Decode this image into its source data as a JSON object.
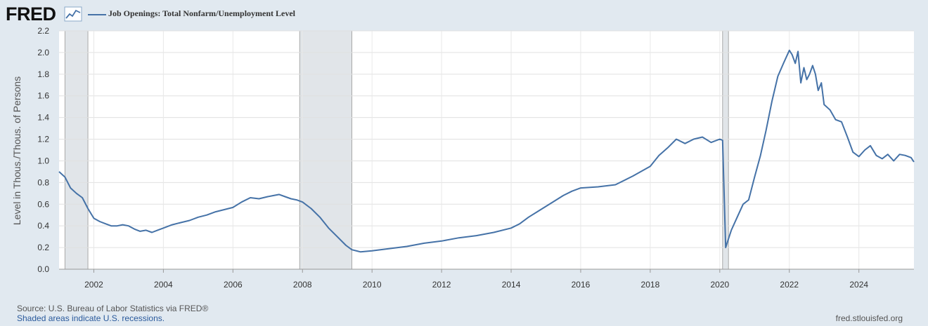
{
  "header": {
    "logo_text": "FRED",
    "legend_label": "Job Openings: Total Nonfarm/Unemployment Level",
    "series_color": "#4572a7",
    "icon": "line-graph-icon"
  },
  "footer": {
    "source": "Source: U.S. Bureau of Labor Statistics via FRED®",
    "notes": "Shaded areas indicate U.S. recessions.",
    "site": "fred.stlouisfed.org"
  },
  "chart_data": {
    "type": "line",
    "title": "",
    "xlabel": "",
    "ylabel": "Level in Thous./Thous. of Persons",
    "xlim": [
      2001.0,
      2025.583
    ],
    "ylim": [
      0.0,
      2.2
    ],
    "grid": true,
    "legend": "top-left",
    "x_ticks": [
      "2002",
      "2004",
      "2006",
      "2008",
      "2010",
      "2012",
      "2014",
      "2016",
      "2018",
      "2020",
      "2022",
      "2024"
    ],
    "y_ticks": [
      "0.0",
      "0.2",
      "0.4",
      "0.6",
      "0.8",
      "1.0",
      "1.2",
      "1.4",
      "1.6",
      "1.8",
      "2.0",
      "2.2"
    ],
    "recessions": [
      [
        2001.17,
        2001.83
      ],
      [
        2007.92,
        2009.42
      ],
      [
        2020.08,
        2020.25
      ]
    ],
    "series": [
      {
        "name": "Job Openings: Total Nonfarm/Unemployment Level",
        "x": [
          2001.0,
          2001.17,
          2001.33,
          2001.5,
          2001.67,
          2001.83,
          2002.0,
          2002.17,
          2002.33,
          2002.5,
          2002.67,
          2002.83,
          2003.0,
          2003.17,
          2003.33,
          2003.5,
          2003.67,
          2003.83,
          2004.0,
          2004.25,
          2004.5,
          2004.75,
          2005.0,
          2005.25,
          2005.5,
          2005.75,
          2006.0,
          2006.25,
          2006.5,
          2006.75,
          2007.0,
          2007.17,
          2007.33,
          2007.5,
          2007.67,
          2007.83,
          2008.0,
          2008.25,
          2008.5,
          2008.75,
          2009.0,
          2009.25,
          2009.42,
          2009.67,
          2010.0,
          2010.5,
          2011.0,
          2011.5,
          2012.0,
          2012.5,
          2013.0,
          2013.5,
          2014.0,
          2014.25,
          2014.5,
          2014.75,
          2015.0,
          2015.25,
          2015.5,
          2015.75,
          2016.0,
          2016.5,
          2017.0,
          2017.5,
          2018.0,
          2018.25,
          2018.5,
          2018.75,
          2019.0,
          2019.25,
          2019.5,
          2019.75,
          2020.0,
          2020.08,
          2020.17,
          2020.25,
          2020.33,
          2020.5,
          2020.67,
          2020.83,
          2021.0,
          2021.17,
          2021.33,
          2021.5,
          2021.67,
          2021.83,
          2022.0,
          2022.08,
          2022.17,
          2022.25,
          2022.33,
          2022.42,
          2022.5,
          2022.58,
          2022.67,
          2022.75,
          2022.83,
          2022.92,
          2023.0,
          2023.17,
          2023.33,
          2023.5,
          2023.67,
          2023.83,
          2024.0,
          2024.17,
          2024.33,
          2024.5,
          2024.67,
          2024.83,
          2025.0,
          2025.17,
          2025.33,
          2025.5,
          2025.583
        ],
        "y": [
          0.9,
          0.85,
          0.75,
          0.7,
          0.66,
          0.56,
          0.47,
          0.44,
          0.42,
          0.4,
          0.4,
          0.41,
          0.4,
          0.37,
          0.35,
          0.36,
          0.34,
          0.36,
          0.38,
          0.41,
          0.43,
          0.45,
          0.48,
          0.5,
          0.53,
          0.55,
          0.57,
          0.62,
          0.66,
          0.65,
          0.67,
          0.68,
          0.69,
          0.67,
          0.65,
          0.64,
          0.62,
          0.56,
          0.48,
          0.38,
          0.3,
          0.22,
          0.18,
          0.16,
          0.17,
          0.19,
          0.21,
          0.24,
          0.26,
          0.29,
          0.31,
          0.34,
          0.38,
          0.42,
          0.48,
          0.53,
          0.58,
          0.63,
          0.68,
          0.72,
          0.75,
          0.76,
          0.78,
          0.86,
          0.95,
          1.05,
          1.12,
          1.2,
          1.16,
          1.2,
          1.22,
          1.17,
          1.2,
          1.19,
          0.2,
          0.28,
          0.36,
          0.48,
          0.6,
          0.64,
          0.85,
          1.05,
          1.28,
          1.55,
          1.78,
          1.9,
          2.02,
          1.98,
          1.9,
          2.01,
          1.72,
          1.86,
          1.75,
          1.8,
          1.88,
          1.8,
          1.65,
          1.72,
          1.52,
          1.47,
          1.38,
          1.36,
          1.22,
          1.08,
          1.04,
          1.1,
          1.14,
          1.05,
          1.02,
          1.06,
          1.0,
          1.06,
          1.05,
          1.03,
          0.99
        ]
      }
    ]
  }
}
